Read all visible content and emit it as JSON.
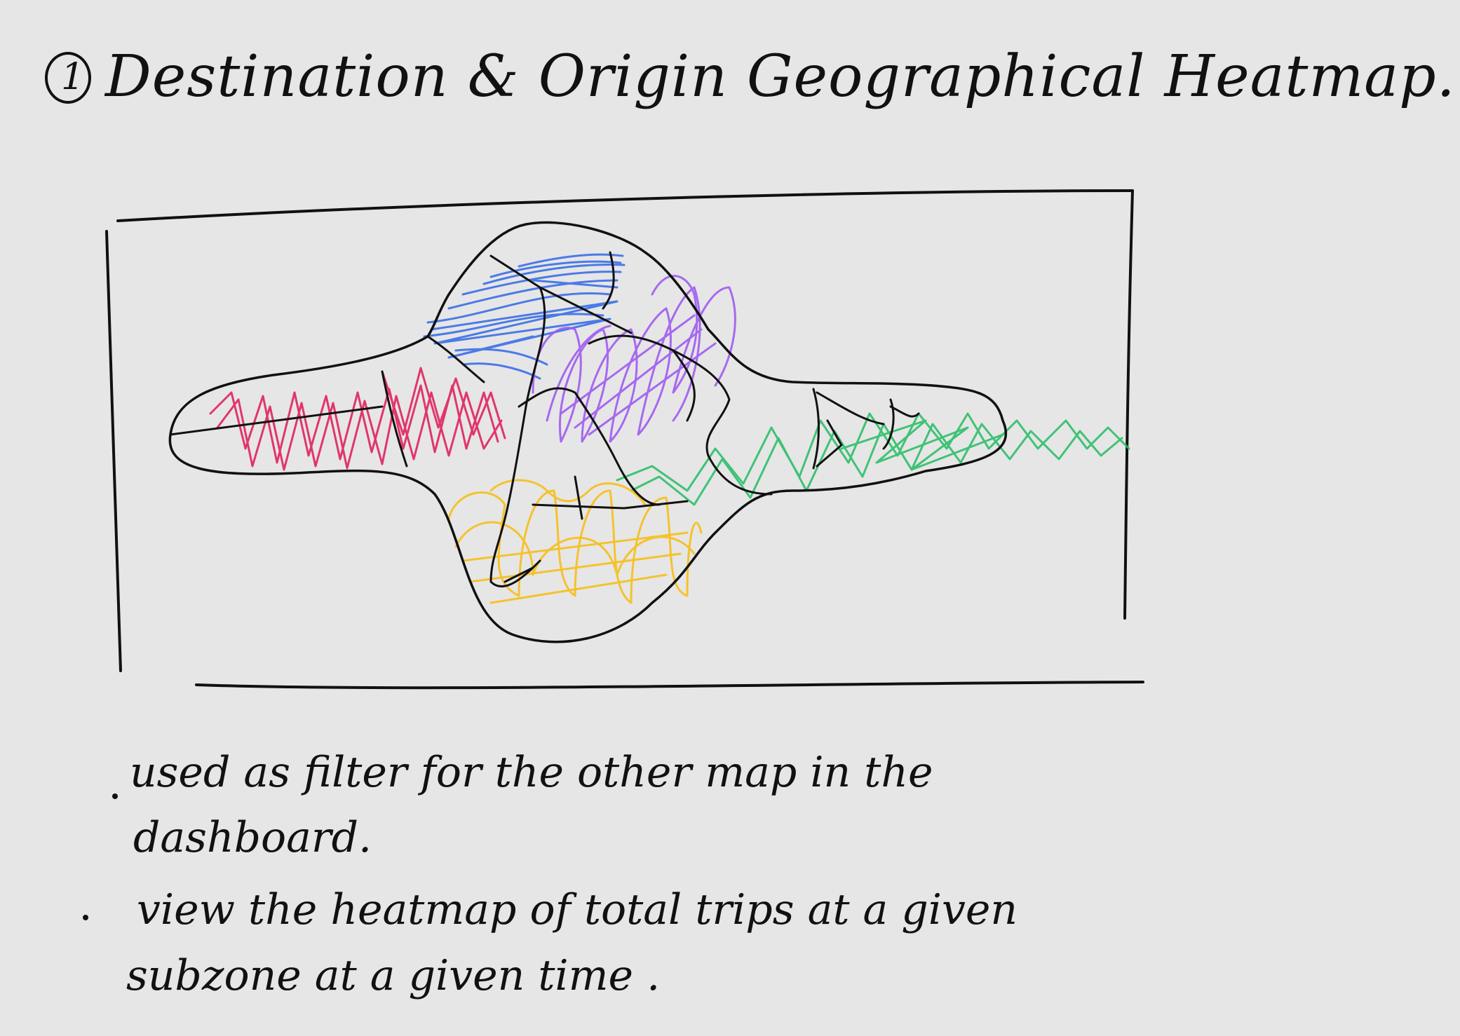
{
  "title": {
    "number": "1",
    "text": "Destination & Origin Geographical Heatmap."
  },
  "notes": [
    {
      "line1": "used as filter for  the other map in  the",
      "line2": "dashboard."
    },
    {
      "line1": "view the heatmap of  total trips at a given",
      "line2": "subzone  at a given time ."
    }
  ],
  "heat_colors": {
    "west": "#e0245e",
    "north": "#3b6fe8",
    "center": "#a05cf0",
    "east": "#2fbf6a",
    "south": "#f7c01e"
  },
  "ink_color": "#111111"
}
